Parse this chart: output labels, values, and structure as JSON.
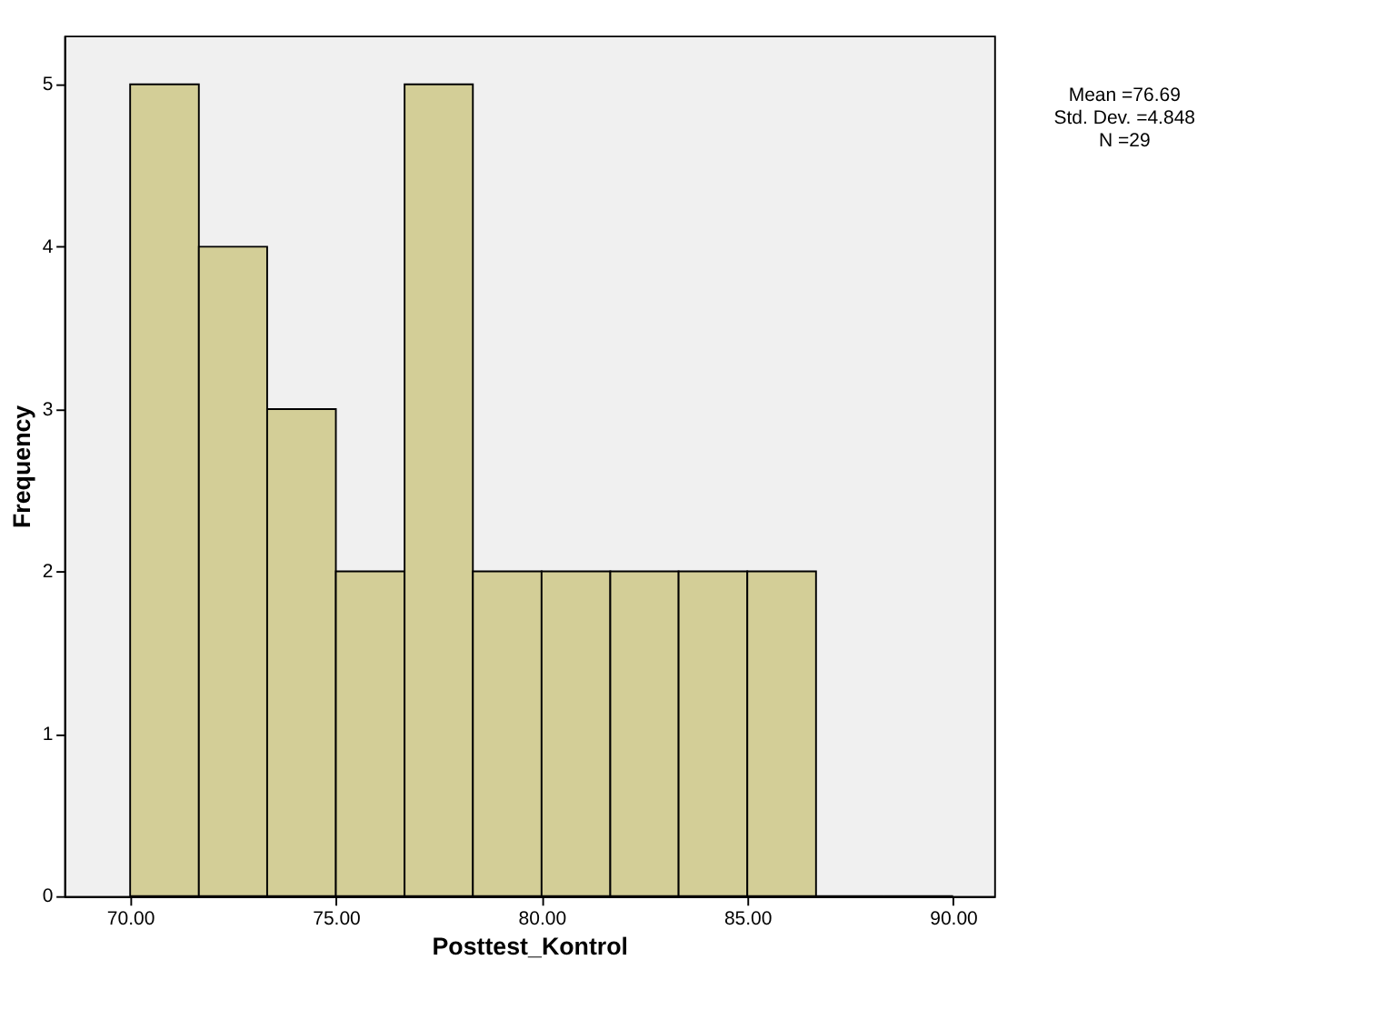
{
  "chart_data": {
    "type": "histogram",
    "xlabel": "Posttest_Kontrol",
    "ylabel": "Frequency",
    "bins": [
      70,
      71.67,
      73.33,
      75,
      76.67,
      78.33,
      80,
      81.67,
      83.33,
      85,
      86.67,
      88.33,
      90
    ],
    "values": [
      5,
      4,
      3,
      2,
      5,
      2,
      2,
      2,
      2,
      2,
      0,
      0
    ],
    "color": "#d3ce97",
    "xlim": [
      68.4,
      91
    ],
    "xticks": [
      {
        "value": 70,
        "label": "70.00"
      },
      {
        "value": 75,
        "label": "75.00"
      },
      {
        "value": 80,
        "label": "80.00"
      },
      {
        "value": 85,
        "label": "85.00"
      },
      {
        "value": 90,
        "label": "90.00"
      }
    ],
    "ylim": [
      0,
      5.3
    ],
    "yticks": [
      0,
      1,
      2,
      3,
      4,
      5
    ],
    "annotations": [
      "Mean =76.69",
      "Std. Dev. =4.848",
      "N =29"
    ],
    "grid": false
  }
}
